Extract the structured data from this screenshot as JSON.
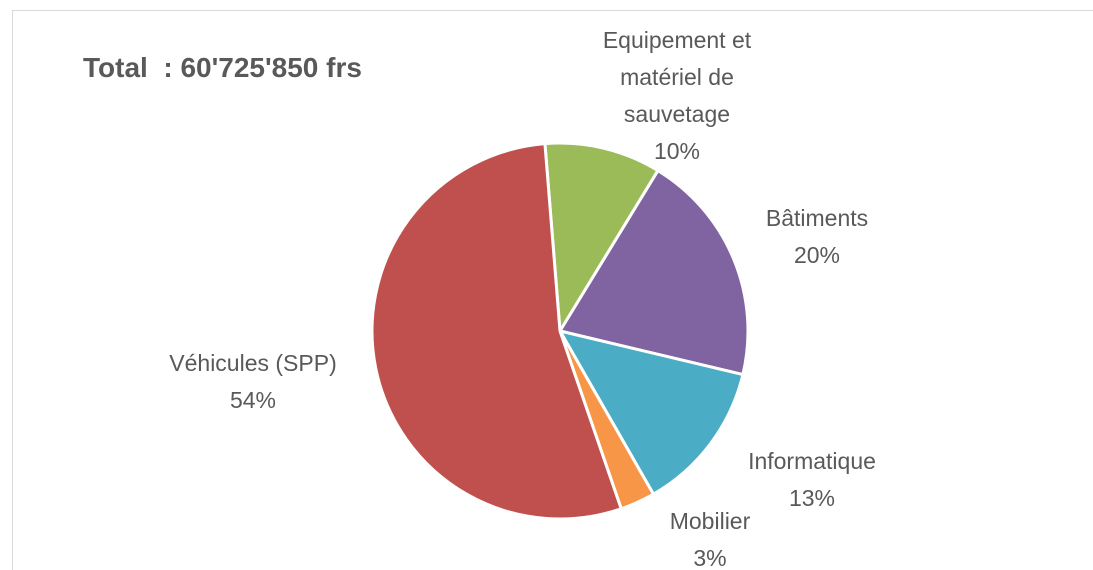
{
  "chart_data": {
    "type": "pie",
    "title": "Total  : 60'725'850 frs",
    "categories": [
      "Equipement et matériel de sauvetage",
      "Bâtiments",
      "Informatique",
      "Mobilier",
      "Véhicules (SPP)"
    ],
    "values": [
      10,
      20,
      13,
      3,
      54
    ],
    "value_labels": [
      "10%",
      "20%",
      "13%",
      "3%",
      "54%"
    ],
    "colors": [
      "#9bbb59",
      "#8064a2",
      "#4bacc6",
      "#f79646",
      "#c0504d"
    ]
  }
}
